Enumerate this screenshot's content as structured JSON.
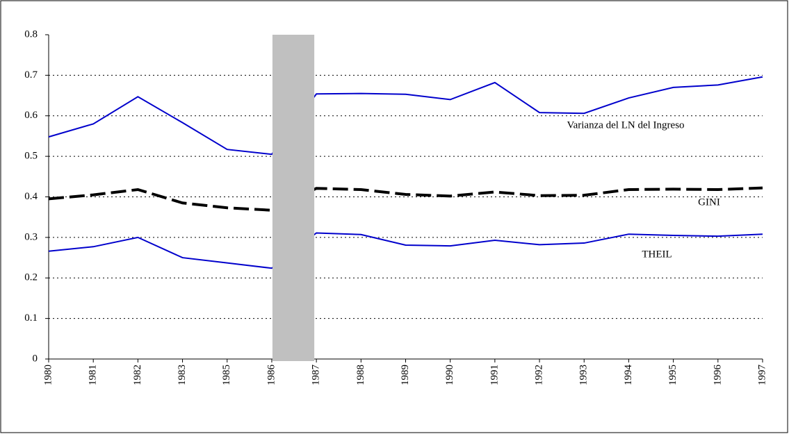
{
  "chart_data": {
    "type": "line",
    "categories": [
      "1980",
      "1981",
      "1982",
      "1983",
      "1985",
      "1986",
      "1987",
      "1988",
      "1989",
      "1990",
      "1991",
      "1992",
      "1993",
      "1994",
      "1995",
      "1996",
      "1997"
    ],
    "series": [
      {
        "name": "Varianza del LN del Ingreso",
        "color": "#0000cc",
        "dash": "solid",
        "values": [
          0.548,
          0.58,
          0.647,
          0.583,
          0.517,
          0.505,
          0.654,
          0.655,
          0.653,
          0.64,
          0.682,
          0.608,
          0.606,
          0.644,
          0.67,
          0.676,
          0.696
        ]
      },
      {
        "name": "GINI",
        "color": "#000000",
        "dash": "dashed",
        "values": [
          0.395,
          0.405,
          0.418,
          0.385,
          0.373,
          0.367,
          0.421,
          0.418,
          0.406,
          0.402,
          0.412,
          0.403,
          0.404,
          0.418,
          0.419,
          0.418,
          0.422
        ]
      },
      {
        "name": "THEIL",
        "color": "#0000cc",
        "dash": "solid",
        "values": [
          0.266,
          0.277,
          0.3,
          0.25,
          0.237,
          0.224,
          0.311,
          0.307,
          0.281,
          0.279,
          0.293,
          0.282,
          0.286,
          0.308,
          0.305,
          0.303,
          0.308
        ]
      }
    ],
    "ylim": [
      0,
      0.8
    ],
    "yticks": [
      0,
      0.1,
      0.2,
      0.3,
      0.4,
      0.5,
      0.6,
      0.7,
      0.8
    ],
    "grid": true
  }
}
